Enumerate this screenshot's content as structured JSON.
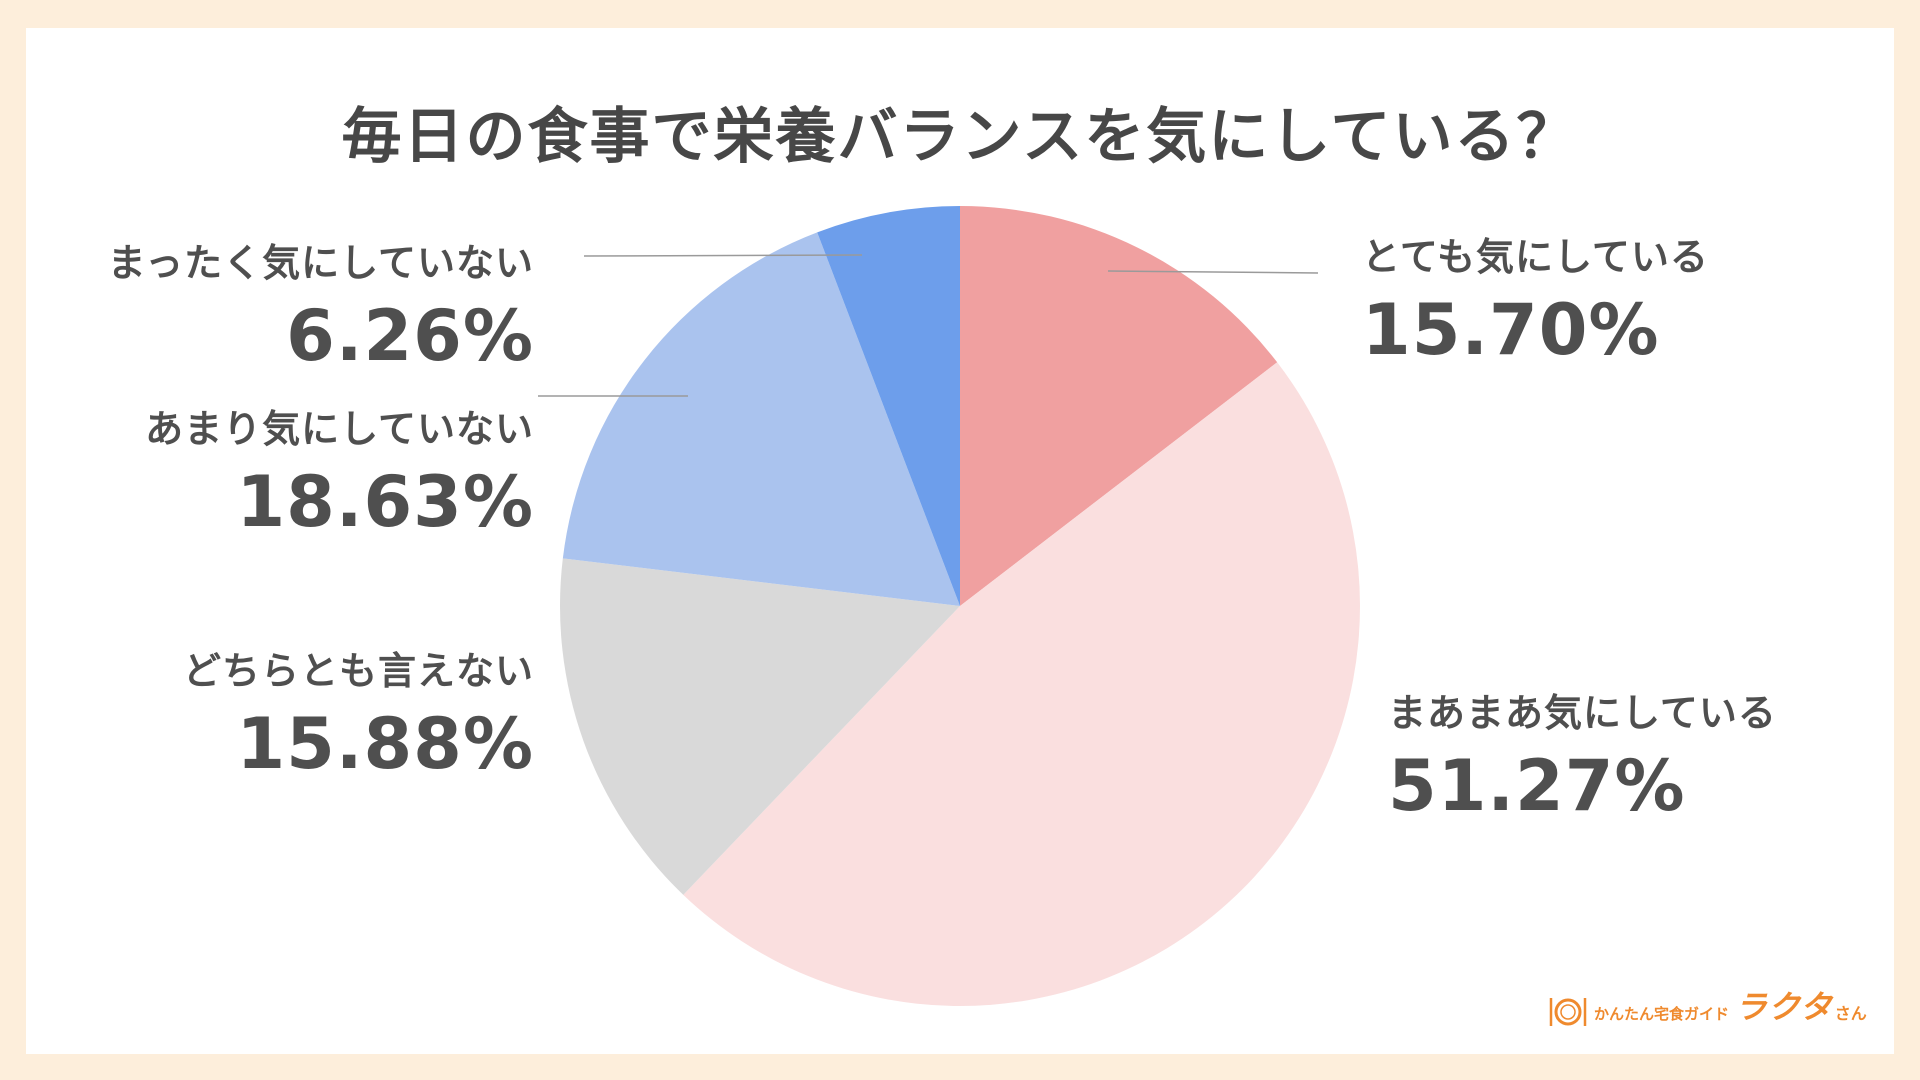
{
  "chart_data": {
    "type": "pie",
    "title": "毎日の食事で栄養バランスを気にしている？",
    "slices": [
      {
        "label": "とても気にしている",
        "value": 15.7,
        "display": "15.70%",
        "color": "#f0a0a0"
      },
      {
        "label": "まあまあ気にしている",
        "value": 51.27,
        "display": "51.27%",
        "color": "#fadfdf"
      },
      {
        "label": "どちらとも言えない",
        "value": 15.88,
        "display": "15.88%",
        "color": "#d9d9d9"
      },
      {
        "label": "あまり気にしていない",
        "value": 18.63,
        "display": "18.63%",
        "color": "#aac3ee"
      },
      {
        "label": "まったく気にしていない",
        "value": 6.26,
        "display": "6.26%",
        "color": "#6d9eeb"
      }
    ],
    "start_angle": "12 o'clock",
    "direction": "clockwise"
  },
  "logo": {
    "sub": "かんたん宅食ガイド",
    "brand": "ラクタ",
    "suffix": "さん",
    "color": "#ef8a2e",
    "icon": "plate-fork-knife-icon"
  }
}
